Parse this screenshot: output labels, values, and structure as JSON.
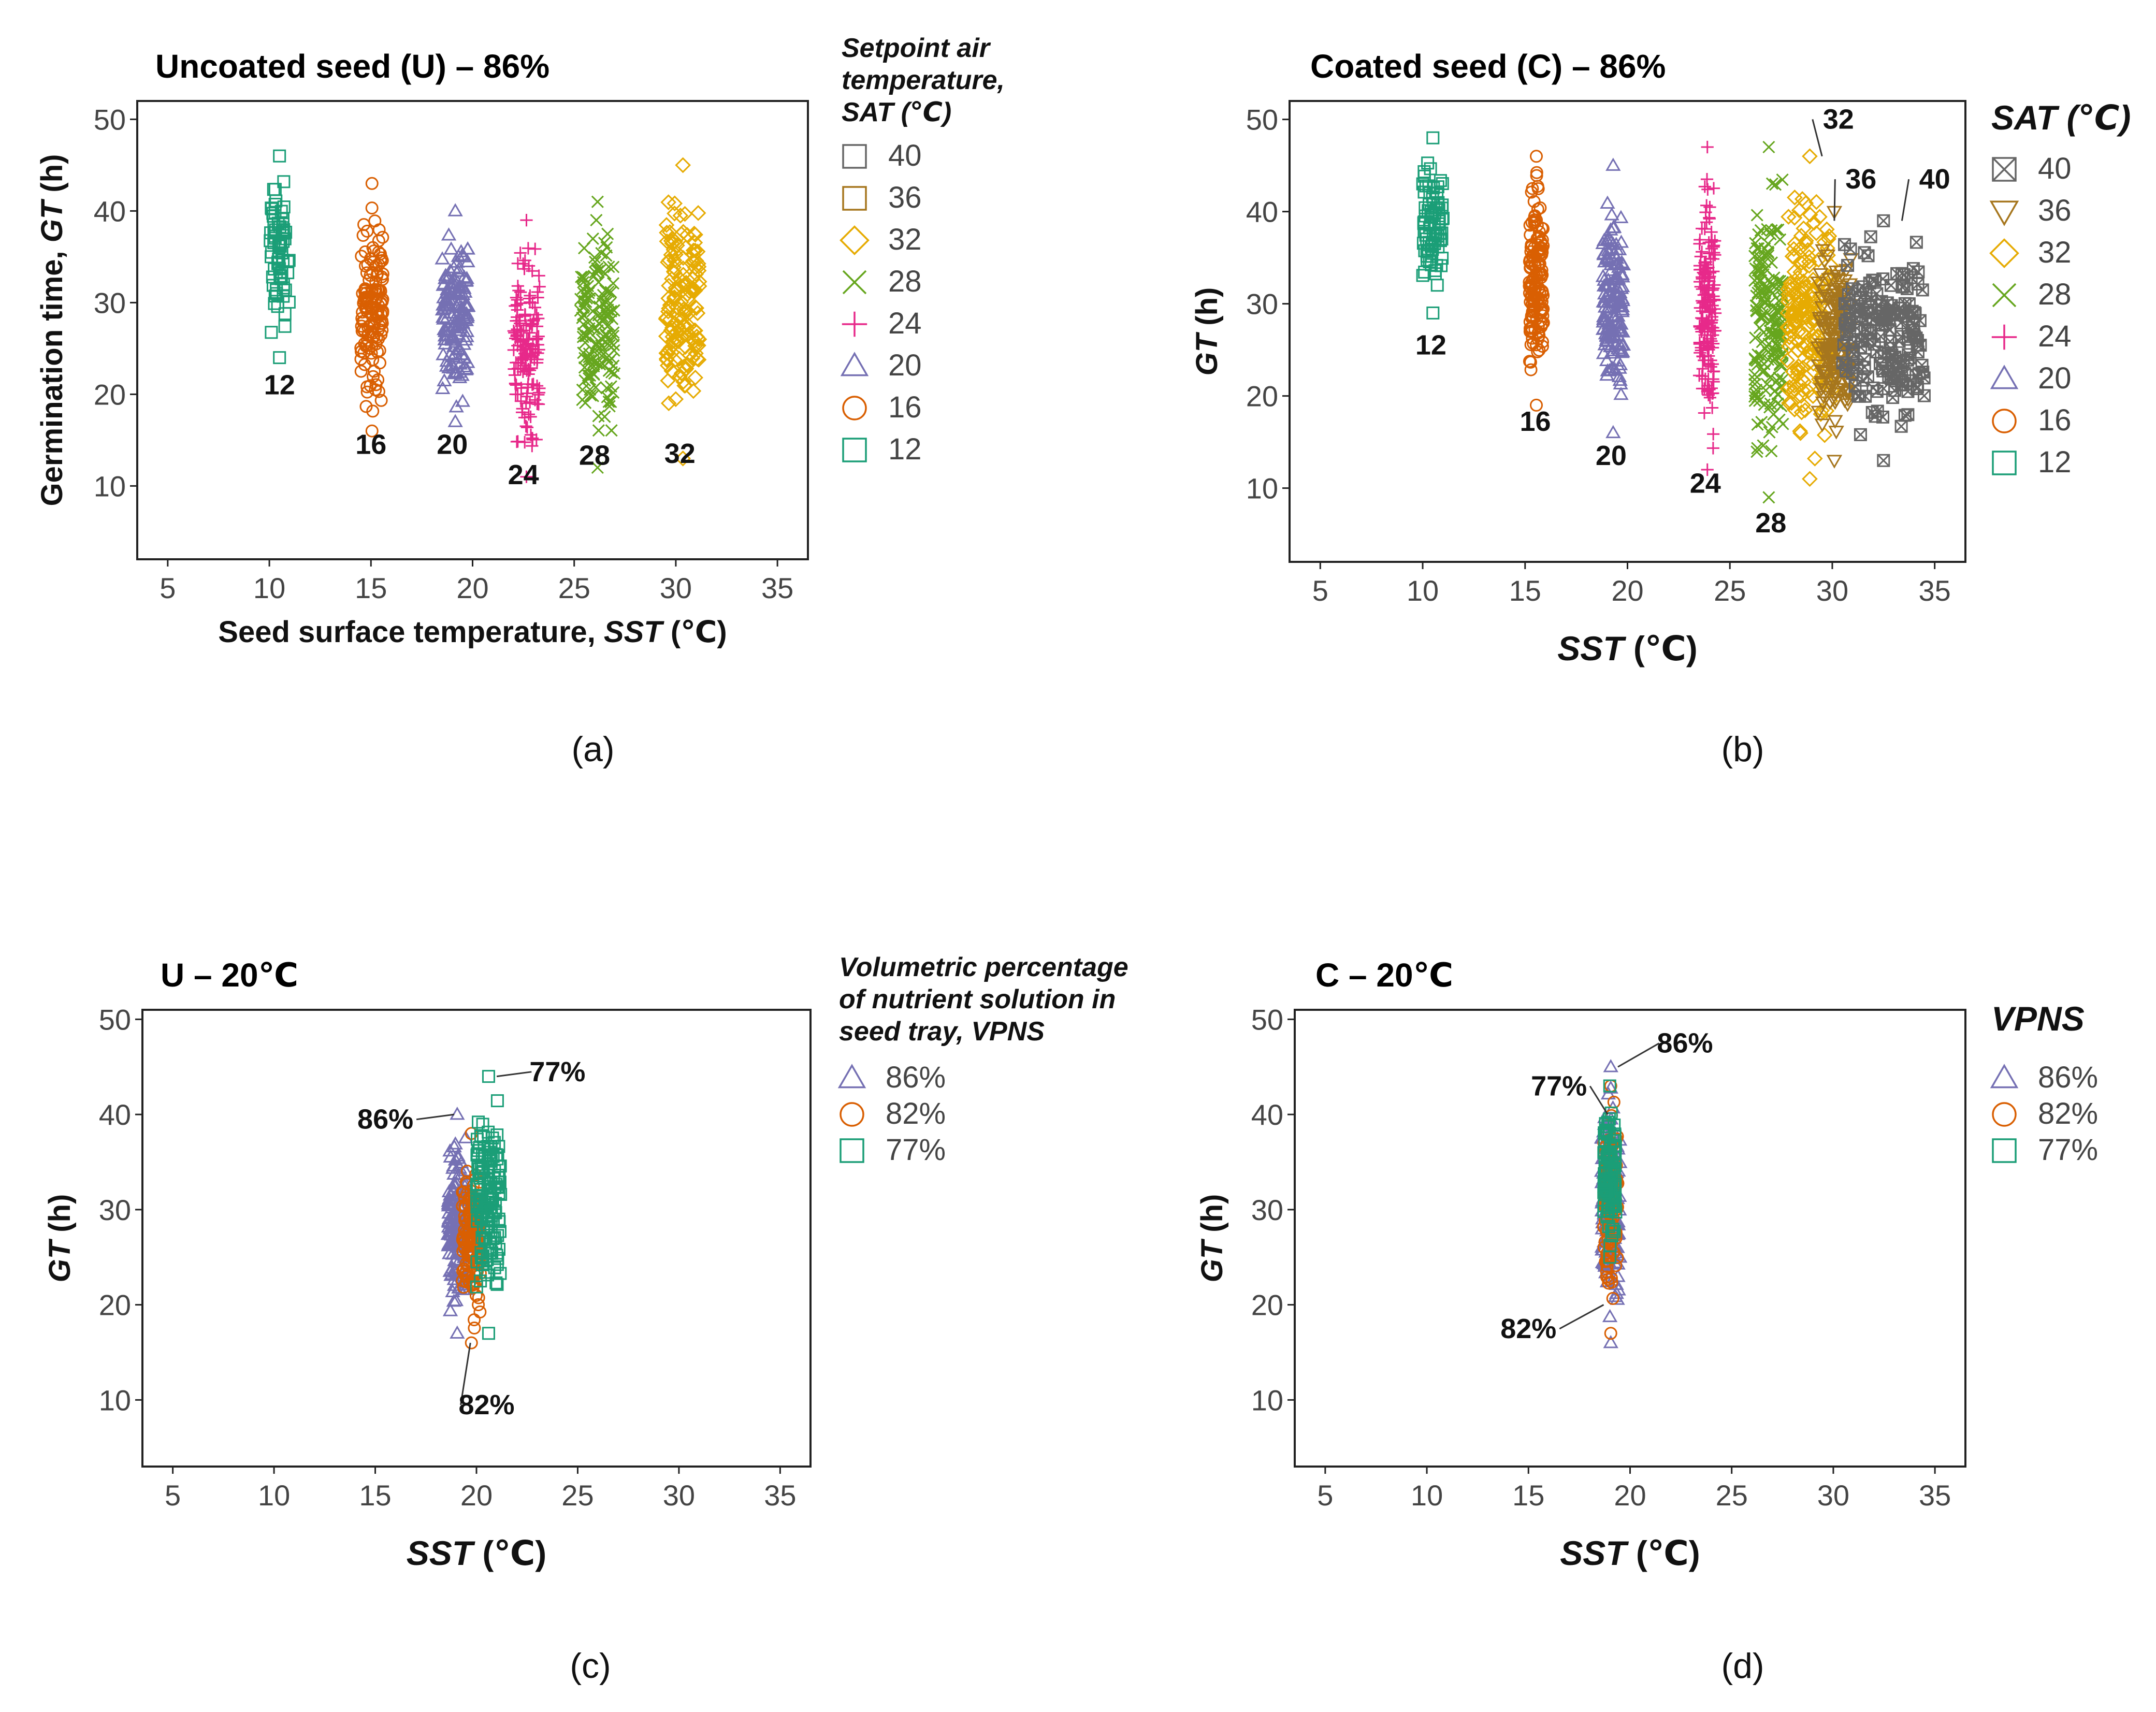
{
  "colors": {
    "12": "#1b9e77",
    "16": "#d95f02",
    "20": "#7570b3",
    "24": "#e7298a",
    "28": "#66a61e",
    "32": "#e6ab02",
    "36": "#a6761d",
    "40": "#666666",
    "86%": "#7570b3",
    "82%": "#d95f02",
    "77%": "#1b9e77"
  },
  "chart_data": [
    {
      "id": "a",
      "type": "scatter",
      "title": "Uncoated seed (U) – 86%",
      "panel_label": "(a)",
      "xlabel": "Seed surface temperature, SST (℃)",
      "xlabel_prefix": "Seed surface temperature, ",
      "xlabel_ital": "SST",
      "xlabel_suffix": " (℃)",
      "ylabel": "Germination time, GT (h)",
      "ylabel_prefix": "Germination time, ",
      "ylabel_ital": "GT",
      "ylabel_suffix": " (h)",
      "xlim": [
        3.5,
        36.5
      ],
      "ylim": [
        2,
        52
      ],
      "xticks": [
        "5",
        "10",
        "15",
        "20",
        "25",
        "30",
        "35"
      ],
      "yticks": [
        "10",
        "20",
        "30",
        "40",
        "50"
      ],
      "legend_title_lines": [
        "Setpoint air",
        "temperature,",
        "SAT (℃)"
      ],
      "legend": [
        "40",
        "36",
        "32",
        "28",
        "24",
        "20",
        "16",
        "12"
      ],
      "series": [
        {
          "name": "12",
          "marker": "square",
          "x_range": [
            10.0,
            11.0
          ],
          "y_range": [
            24,
            46
          ],
          "count": 70
        },
        {
          "name": "16",
          "marker": "circle",
          "x_range": [
            14.5,
            15.6
          ],
          "y_range": [
            16,
            43
          ],
          "count": 140
        },
        {
          "name": "20",
          "marker": "triangle",
          "x_range": [
            18.5,
            19.8
          ],
          "y_range": [
            17,
            40
          ],
          "count": 140
        },
        {
          "name": "24",
          "marker": "plus",
          "x_range": [
            22.0,
            23.3
          ],
          "y_range": [
            11,
            39
          ],
          "count": 140
        },
        {
          "name": "28",
          "marker": "x",
          "x_range": [
            25.3,
            27.0
          ],
          "y_range": [
            12,
            41
          ],
          "count": 140
        },
        {
          "name": "32",
          "marker": "diamond",
          "x_range": [
            29.5,
            31.2
          ],
          "y_range": [
            13,
            45
          ],
          "count": 160
        }
      ],
      "annotations": [
        {
          "text": "12",
          "x": 10.5,
          "y": 20
        },
        {
          "text": "16",
          "x": 15.0,
          "y": 13.5
        },
        {
          "text": "20",
          "x": 19.0,
          "y": 13.5
        },
        {
          "text": "24",
          "x": 22.5,
          "y": 10.2
        },
        {
          "text": "28",
          "x": 26.0,
          "y": 12.3
        },
        {
          "text": "32",
          "x": 30.2,
          "y": 12.5
        }
      ]
    },
    {
      "id": "b",
      "type": "scatter",
      "title": "Coated seed (C) – 86%",
      "panel_label": "(b)",
      "xlabel": "SST (℃)",
      "xlabel_prefix": "",
      "xlabel_ital": "SST",
      "xlabel_suffix": " (℃)",
      "ylabel": "GT (h)",
      "ylabel_prefix": "",
      "ylabel_ital": "GT",
      "ylabel_suffix": " (h)",
      "xlim": [
        3.5,
        36.5
      ],
      "ylim": [
        2,
        52
      ],
      "xticks": [
        "5",
        "10",
        "15",
        "20",
        "25",
        "30",
        "35"
      ],
      "yticks": [
        "10",
        "20",
        "30",
        "40",
        "50"
      ],
      "legend_title": "SAT (℃)",
      "legend": [
        "40",
        "36",
        "32",
        "28",
        "24",
        "20",
        "16",
        "12"
      ],
      "series": [
        {
          "name": "12",
          "marker": "square",
          "x_range": [
            10.0,
            11.0
          ],
          "y_range": [
            29,
            48
          ],
          "count": 80
        },
        {
          "name": "16",
          "marker": "circle",
          "x_range": [
            15.2,
            15.9
          ],
          "y_range": [
            19,
            46
          ],
          "count": 150
        },
        {
          "name": "20",
          "marker": "triangle",
          "x_range": [
            18.8,
            19.8
          ],
          "y_range": [
            16,
            45
          ],
          "count": 160
        },
        {
          "name": "24",
          "marker": "plus",
          "x_range": [
            23.5,
            24.3
          ],
          "y_range": [
            12,
            47
          ],
          "count": 160
        },
        {
          "name": "28",
          "marker": "x",
          "x_range": [
            26.2,
            27.6
          ],
          "y_range": [
            9,
            47
          ],
          "count": 170
        },
        {
          "name": "32",
          "marker": "diamond",
          "x_range": [
            27.8,
            30.0
          ],
          "y_range": [
            11,
            46
          ],
          "count": 190
        },
        {
          "name": "36",
          "marker": "triangle-down",
          "x_range": [
            29.3,
            30.9
          ],
          "y_range": [
            13,
            40
          ],
          "count": 160
        },
        {
          "name": "40",
          "marker": "square-x",
          "x_range": [
            30.5,
            34.5
          ],
          "y_range": [
            13,
            39
          ],
          "count": 180
        }
      ],
      "annotations": [
        {
          "text": "12",
          "x": 10.4,
          "y": 24.5
        },
        {
          "text": "16",
          "x": 15.5,
          "y": 16.2
        },
        {
          "text": "20",
          "x": 19.2,
          "y": 12.5
        },
        {
          "text": "24",
          "x": 23.8,
          "y": 9.5
        },
        {
          "text": "28",
          "x": 27.0,
          "y": 5.2
        },
        {
          "text": "32",
          "x": 30.3,
          "y": 49.0,
          "leader_to": [
            29.5,
            46
          ]
        },
        {
          "text": "36",
          "x": 31.4,
          "y": 42.5,
          "leader_to": [
            30.1,
            39
          ]
        },
        {
          "text": "40",
          "x": 35.0,
          "y": 42.5,
          "leader_to": [
            33.4,
            39
          ]
        }
      ]
    },
    {
      "id": "c",
      "type": "scatter",
      "title": "U – 20℃",
      "panel_label": "(c)",
      "xlabel": "SST (℃)",
      "xlabel_prefix": "",
      "xlabel_ital": "SST",
      "xlabel_suffix": " (℃)",
      "ylabel": "GT (h)",
      "ylabel_prefix": "",
      "ylabel_ital": "GT",
      "ylabel_suffix": " (h)",
      "xlim": [
        3.5,
        36.5
      ],
      "ylim": [
        3,
        51
      ],
      "xticks": [
        "5",
        "10",
        "15",
        "20",
        "25",
        "30",
        "35"
      ],
      "yticks": [
        "10",
        "20",
        "30",
        "40",
        "50"
      ],
      "legend_title_lines": [
        "Volumetric percentage",
        "of nutrient solution in",
        "seed tray, VPNS"
      ],
      "legend": [
        "86%",
        "82%",
        "77%"
      ],
      "series": [
        {
          "name": "86%",
          "marker": "triangle",
          "x_range": [
            18.6,
            19.5
          ],
          "y_range": [
            17,
            40
          ],
          "count": 140
        },
        {
          "name": "82%",
          "marker": "circle",
          "x_range": [
            19.3,
            20.2
          ],
          "y_range": [
            16,
            38
          ],
          "count": 140
        },
        {
          "name": "77%",
          "marker": "square",
          "x_range": [
            20.0,
            21.2
          ],
          "y_range": [
            17,
            44
          ],
          "count": 150
        }
      ],
      "annotations": [
        {
          "text": "77%",
          "x": 24.0,
          "y": 43.5,
          "leader_to": [
            21.0,
            44
          ]
        },
        {
          "text": "86%",
          "x": 15.5,
          "y": 38.5,
          "leader_to": [
            18.9,
            40
          ]
        },
        {
          "text": "82%",
          "x": 20.5,
          "y": 8.5,
          "leader_to": [
            19.7,
            16
          ]
        }
      ]
    },
    {
      "id": "d",
      "type": "scatter",
      "title": "C – 20℃",
      "panel_label": "(d)",
      "xlabel": "SST (℃)",
      "xlabel_prefix": "",
      "xlabel_ital": "SST",
      "xlabel_suffix": " (℃)",
      "ylabel": "GT (h)",
      "ylabel_prefix": "",
      "ylabel_ital": "GT",
      "ylabel_suffix": " (h)",
      "xlim": [
        3.5,
        36.5
      ],
      "ylim": [
        3,
        51
      ],
      "xticks": [
        "5",
        "10",
        "15",
        "20",
        "25",
        "30",
        "35"
      ],
      "yticks": [
        "10",
        "20",
        "30",
        "40",
        "50"
      ],
      "legend_title": "VPNS",
      "legend": [
        "86%",
        "82%",
        "77%"
      ],
      "series": [
        {
          "name": "86%",
          "marker": "triangle",
          "x_range": [
            18.6,
            19.5
          ],
          "y_range": [
            16,
            45
          ],
          "count": 150
        },
        {
          "name": "82%",
          "marker": "circle",
          "x_range": [
            18.7,
            19.4
          ],
          "y_range": [
            17,
            43
          ],
          "count": 130
        },
        {
          "name": "77%",
          "marker": "square",
          "x_range": [
            18.7,
            19.3
          ],
          "y_range": [
            25,
            43
          ],
          "count": 100
        }
      ],
      "annotations": [
        {
          "text": "86%",
          "x": 22.7,
          "y": 46.5,
          "leader_to": [
            19.4,
            45
          ]
        },
        {
          "text": "77%",
          "x": 16.5,
          "y": 42.0,
          "leader_to": [
            18.9,
            40
          ]
        },
        {
          "text": "82%",
          "x": 15.0,
          "y": 16.5,
          "leader_to": [
            18.7,
            20
          ]
        }
      ]
    }
  ]
}
